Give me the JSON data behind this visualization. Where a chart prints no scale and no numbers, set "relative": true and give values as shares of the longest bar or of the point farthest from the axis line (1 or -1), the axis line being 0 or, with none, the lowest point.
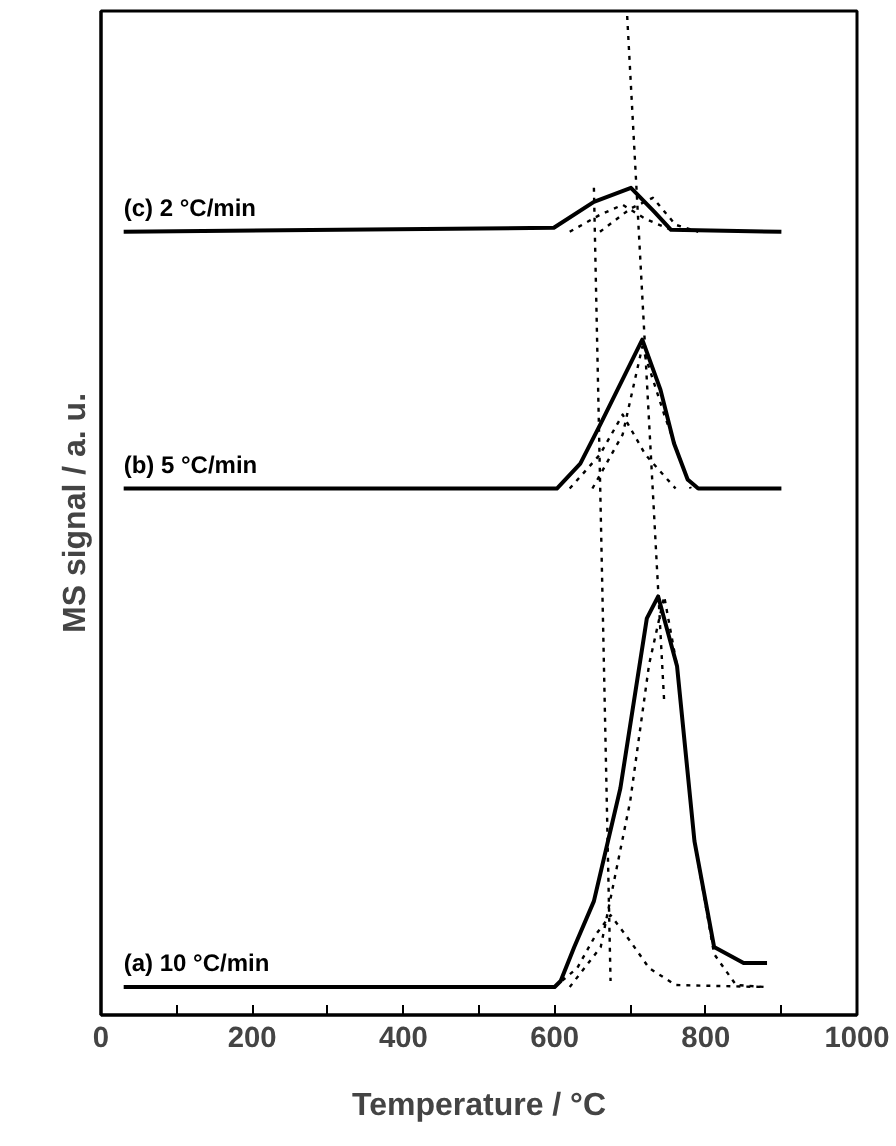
{
  "chart_data": {
    "type": "line",
    "relative": true,
    "xlabel": "Temperature / °C",
    "ylabel": "MS signal / a. u.",
    "xlim": [
      0,
      1000
    ],
    "xticks": [
      0,
      {
        "value": 100,
        "label": null
      },
      200,
      {
        "value": 300,
        "label": null
      },
      400,
      {
        "value": 500,
        "label": null
      },
      600,
      {
        "value": 700,
        "label": null
      },
      800,
      {
        "value": 900,
        "label": null
      },
      1000
    ],
    "tick_labels": "x",
    "grid": false,
    "series": [
      {
        "name": "(a) 10 °C/min",
        "color": "#000000",
        "line_style": "solid",
        "x": [
          30,
          600,
          608,
          626,
          652,
          687,
          722,
          737,
          762,
          785,
          811,
          850,
          881
        ],
        "values": [
          0.028,
          0.028,
          0.034,
          0.068,
          0.114,
          0.227,
          0.397,
          0.419,
          0.349,
          0.174,
          0.068,
          0.052,
          0.052
        ]
      },
      {
        "name": "(b) 5 °C/min",
        "color": "#000000",
        "line_style": "solid",
        "x": [
          30,
          603,
          634,
          661,
          716,
          740,
          758,
          776,
          790,
          900
        ],
        "values": [
          0.527,
          0.527,
          0.552,
          0.592,
          0.676,
          0.626,
          0.572,
          0.536,
          0.527,
          0.527
        ]
      },
      {
        "name": "(c) 2 °C/min",
        "color": "#000000",
        "line_style": "solid",
        "x": [
          30,
          599,
          652,
          701,
          732,
          754,
          900
        ],
        "values": [
          0.784,
          0.788,
          0.814,
          0.828,
          0.804,
          0.786,
          0.784
        ]
      },
      {
        "color": "#000000",
        "line_style": "dotted",
        "x": [
          600,
          630,
          655,
          674,
          700,
          725,
          760,
          880
        ],
        "values": [
          0.028,
          0.047,
          0.081,
          0.1,
          0.074,
          0.047,
          0.03,
          0.028
        ]
      },
      {
        "color": "#000000",
        "line_style": "dotted",
        "x": [
          620,
          661,
          700,
          725,
          745,
          762,
          785,
          811,
          840,
          880
        ],
        "values": [
          0.028,
          0.068,
          0.214,
          0.351,
          0.419,
          0.349,
          0.174,
          0.061,
          0.03,
          0.028
        ]
      },
      {
        "color": "#000000",
        "line_style": "dotted",
        "x": [
          620,
          660,
          690,
          720,
          760
        ],
        "values": [
          0.527,
          0.561,
          0.601,
          0.561,
          0.527
        ]
      },
      {
        "color": "#000000",
        "line_style": "dotted",
        "x": [
          650,
          690,
          716,
          745,
          780
        ],
        "values": [
          0.527,
          0.581,
          0.669,
          0.601,
          0.527
        ]
      },
      {
        "color": "#000000",
        "line_style": "dotted",
        "x": [
          620,
          660,
          690,
          720,
          760
        ],
        "values": [
          0.784,
          0.801,
          0.811,
          0.797,
          0.784
        ]
      },
      {
        "color": "#000000",
        "line_style": "dotted",
        "x": [
          660,
          700,
          730,
          760,
          790
        ],
        "values": [
          0.784,
          0.807,
          0.818,
          0.791,
          0.784
        ]
      },
      {
        "color": "#000000",
        "line_style": "dotted",
        "x": [
          652,
          674
        ],
        "values": [
          0.828,
          0.034
        ]
      },
      {
        "color": "#000000",
        "line_style": "dotted",
        "x": [
          696,
          745
        ],
        "values": [
          1.0,
          0.313
        ]
      }
    ]
  }
}
